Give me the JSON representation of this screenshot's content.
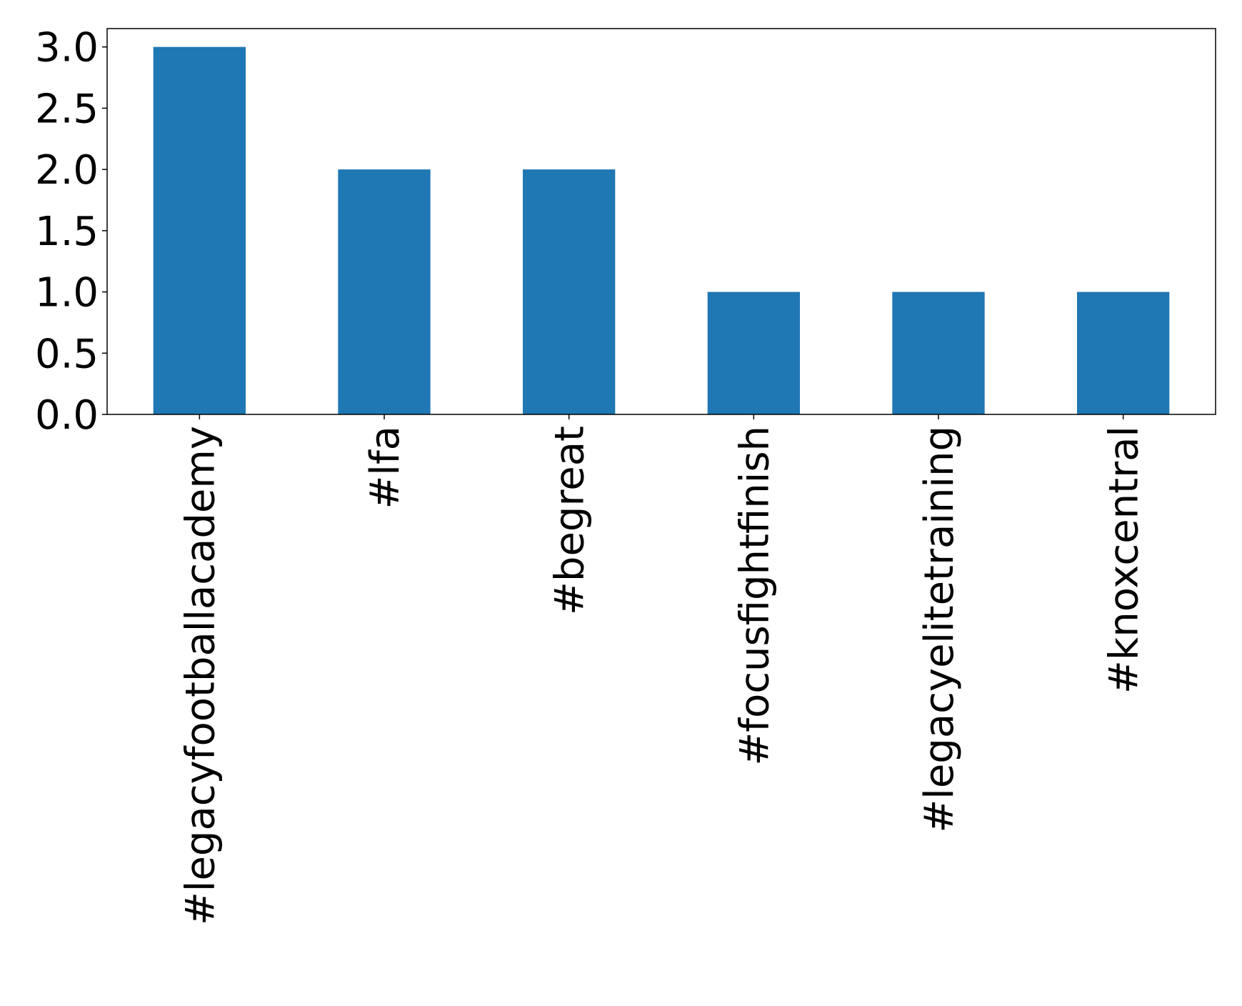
{
  "chart_data": {
    "type": "bar",
    "title": "",
    "xlabel": "",
    "ylabel": "",
    "categories": [
      "#legacyfootballacademy",
      "#lfa",
      "#begreat",
      "#focusfightfinish",
      "#legacyelitetraining",
      "#knoxcentral"
    ],
    "values": [
      3,
      2,
      2,
      1,
      1,
      1
    ],
    "ylim": [
      0,
      3.15
    ],
    "yticks": [
      "0.0",
      "0.5",
      "1.0",
      "1.5",
      "2.0",
      "2.5",
      "3.0"
    ],
    "grid": false,
    "legend": "none",
    "bar_color": "#1f77b4"
  }
}
